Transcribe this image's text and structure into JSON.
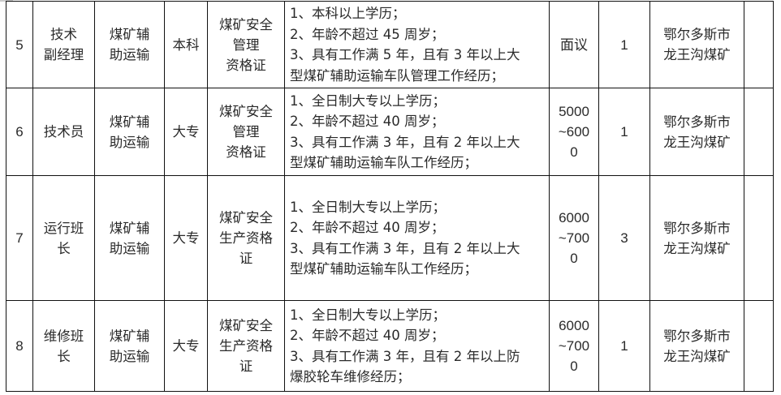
{
  "rows": [
    {
      "no": "5",
      "position": [
        "技术",
        "副经理"
      ],
      "dept": [
        "煤矿辅",
        "助运输"
      ],
      "edu": "本科",
      "cert": [
        "煤矿安全",
        "管理",
        "资格证"
      ],
      "requirements": [
        "1、本科以上学历；",
        "2、年龄不超过 45 周岁；",
        "3、具有工作满 5 年，且有 3 年以上大",
        "型煤矿辅助运输车队管理工作经历；"
      ],
      "salary": [
        "面议"
      ],
      "count": "1",
      "location": [
        "鄂尔多斯市",
        "龙王沟煤矿"
      ],
      "note": ""
    },
    {
      "no": "6",
      "position": [
        "技术员"
      ],
      "dept": [
        "煤矿辅",
        "助运输"
      ],
      "edu": "大专",
      "cert": [
        "煤矿安全",
        "管理",
        "资格证"
      ],
      "requirements": [
        "1、全日制大专以上学历；",
        "2、年龄不超过 40 周岁；",
        "3、具有工作满 3 年，且有 2 年以上大",
        "型煤矿辅助运输车队工作经历；"
      ],
      "salary": [
        "5000",
        "~600",
        "0"
      ],
      "count": "1",
      "location": [
        "鄂尔多斯市",
        "龙王沟煤矿"
      ],
      "note": ""
    },
    {
      "no": "7",
      "position": [
        "运行班",
        "长"
      ],
      "dept": [
        "煤矿辅",
        "助运输"
      ],
      "edu": "大专",
      "cert": [
        "煤矿安全",
        "生产资格",
        "证"
      ],
      "requirements": [
        "1、全日制大专以上学历；",
        "2、年龄不超过 40 周岁；",
        "3、具有工作满 3 年，且有 2 年以上大",
        "型煤矿辅助运输车队工作经历；"
      ],
      "salary": [
        "6000",
        "~700",
        "0"
      ],
      "count": "3",
      "location": [
        "鄂尔多斯市",
        "龙王沟煤矿"
      ],
      "note": ""
    },
    {
      "no": "8",
      "position": [
        "维修班",
        "长"
      ],
      "dept": [
        "煤矿辅",
        "助运输"
      ],
      "edu": "大专",
      "cert": [
        "煤矿安全",
        "生产资格",
        "证"
      ],
      "requirements": [
        "1、全日制大专以上学历；",
        "2、年龄不超过 40 周岁；",
        "3、具有工作满 3 年，且有 2 年以上防",
        "爆胶轮车维修经历；"
      ],
      "salary": [
        "6000",
        "~700",
        "0"
      ],
      "count": "1",
      "location": [
        "鄂尔多斯市",
        "龙王沟煤矿"
      ],
      "note": ""
    }
  ]
}
